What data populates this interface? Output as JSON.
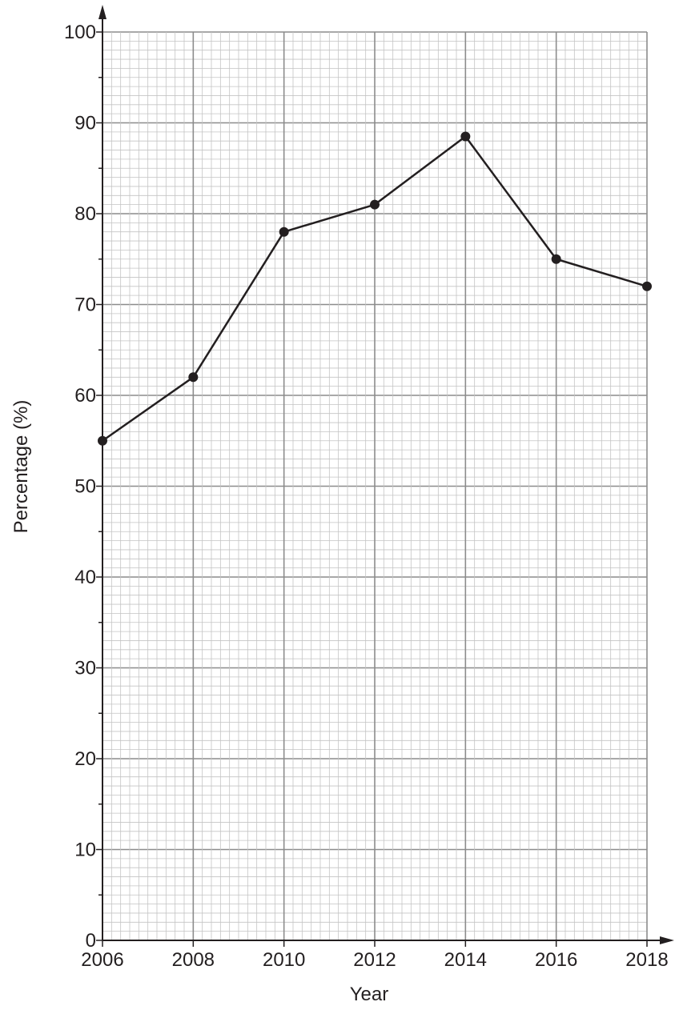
{
  "chart_data": {
    "type": "line",
    "title": "",
    "xlabel": "Year",
    "ylabel": "Percentage (%)",
    "x": [
      2006,
      2008,
      2010,
      2012,
      2014,
      2016,
      2018
    ],
    "series": [
      {
        "values": [
          55,
          62,
          78,
          81,
          88.5,
          75,
          72
        ]
      }
    ],
    "xlim": [
      2006,
      2018
    ],
    "ylim": [
      0,
      100
    ],
    "x_ticks": [
      "2006",
      "2008",
      "2010",
      "2012",
      "2014",
      "2016",
      "2018"
    ],
    "y_ticks": [
      "0",
      "10",
      "20",
      "30",
      "40",
      "50",
      "60",
      "70",
      "80",
      "90",
      "100"
    ],
    "grid": true,
    "legend": "none",
    "colors": {
      "line": "#231f20",
      "marker": "#231f20",
      "grid_major": "#8c8c8c",
      "grid_minor": "#c4c4c4",
      "axis": "#231f20"
    }
  }
}
